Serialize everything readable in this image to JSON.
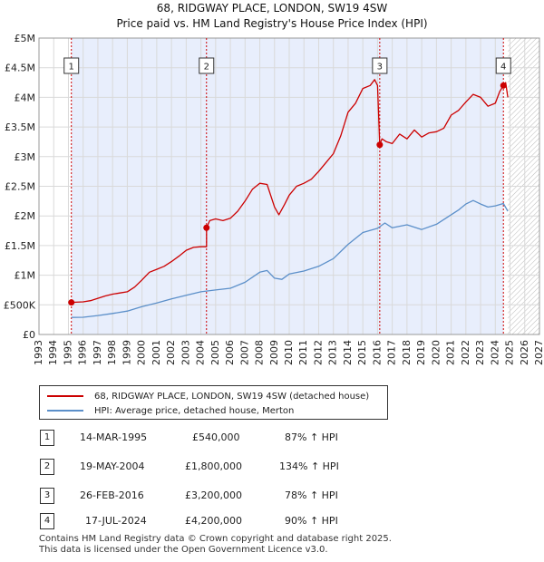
{
  "title": "68, RIDGWAY PLACE, LONDON, SW19 4SW",
  "subtitle": "Price paid vs. HM Land Registry's House Price Index (HPI)",
  "colors": {
    "property": "#cc0000",
    "hpi": "#5b8fc9",
    "band": "#e8eefc",
    "marker": "#cc0000"
  },
  "chart_data": {
    "type": "line",
    "xlim": [
      1993,
      2027
    ],
    "ylim": [
      0,
      5000000
    ],
    "yticks": [
      {
        "value": 0,
        "label": "£0"
      },
      {
        "value": 500000,
        "label": "£500K"
      },
      {
        "value": 1000000,
        "label": "£1M"
      },
      {
        "value": 1500000,
        "label": "£1.5M"
      },
      {
        "value": 2000000,
        "label": "£2M"
      },
      {
        "value": 2500000,
        "label": "£2.5M"
      },
      {
        "value": 3000000,
        "label": "£3M"
      },
      {
        "value": 3500000,
        "label": "£3.5M"
      },
      {
        "value": 4000000,
        "label": "£4M"
      },
      {
        "value": 4500000,
        "label": "£4.5M"
      },
      {
        "value": 5000000,
        "label": "£5M"
      }
    ],
    "xticks": [
      "1993",
      "1994",
      "1995",
      "1996",
      "1997",
      "1998",
      "1999",
      "2000",
      "2001",
      "2002",
      "2003",
      "2004",
      "2005",
      "2006",
      "2007",
      "2008",
      "2009",
      "2010",
      "2011",
      "2012",
      "2013",
      "2014",
      "2015",
      "2016",
      "2017",
      "2018",
      "2019",
      "2020",
      "2021",
      "2022",
      "2023",
      "2024",
      "2025",
      "2026",
      "2027"
    ],
    "shaded_range": [
      1995.2,
      2024.55
    ],
    "hatched_from": 2024.85,
    "series": [
      {
        "name": "68, RIDGWAY PLACE, LONDON, SW19 4SW (detached house)",
        "points": [
          [
            1995.2,
            540000
          ],
          [
            1995.5,
            545000
          ],
          [
            1996.0,
            550000
          ],
          [
            1996.5,
            570000
          ],
          [
            1997.0,
            610000
          ],
          [
            1997.5,
            650000
          ],
          [
            1998.0,
            680000
          ],
          [
            1998.5,
            700000
          ],
          [
            1999.0,
            720000
          ],
          [
            1999.5,
            800000
          ],
          [
            2000.0,
            920000
          ],
          [
            2000.5,
            1050000
          ],
          [
            2001.0,
            1100000
          ],
          [
            2001.5,
            1150000
          ],
          [
            2002.0,
            1230000
          ],
          [
            2002.5,
            1320000
          ],
          [
            2003.0,
            1420000
          ],
          [
            2003.5,
            1470000
          ],
          [
            2004.0,
            1480000
          ],
          [
            2004.38,
            1480000
          ],
          [
            2004.38,
            1800000
          ],
          [
            2004.6,
            1920000
          ],
          [
            2005.0,
            1950000
          ],
          [
            2005.5,
            1920000
          ],
          [
            2006.0,
            1960000
          ],
          [
            2006.5,
            2080000
          ],
          [
            2007.0,
            2250000
          ],
          [
            2007.5,
            2450000
          ],
          [
            2008.0,
            2550000
          ],
          [
            2008.5,
            2530000
          ],
          [
            2009.0,
            2150000
          ],
          [
            2009.3,
            2020000
          ],
          [
            2009.7,
            2200000
          ],
          [
            2010.0,
            2350000
          ],
          [
            2010.5,
            2500000
          ],
          [
            2011.0,
            2550000
          ],
          [
            2011.5,
            2620000
          ],
          [
            2012.0,
            2750000
          ],
          [
            2012.5,
            2900000
          ],
          [
            2013.0,
            3050000
          ],
          [
            2013.5,
            3350000
          ],
          [
            2014.0,
            3750000
          ],
          [
            2014.5,
            3900000
          ],
          [
            2015.0,
            4150000
          ],
          [
            2015.5,
            4200000
          ],
          [
            2015.8,
            4300000
          ],
          [
            2016.0,
            4200000
          ],
          [
            2016.15,
            3200000
          ],
          [
            2016.3,
            3300000
          ],
          [
            2016.6,
            3250000
          ],
          [
            2017.0,
            3220000
          ],
          [
            2017.5,
            3380000
          ],
          [
            2018.0,
            3300000
          ],
          [
            2018.5,
            3450000
          ],
          [
            2019.0,
            3330000
          ],
          [
            2019.5,
            3400000
          ],
          [
            2020.0,
            3420000
          ],
          [
            2020.5,
            3480000
          ],
          [
            2021.0,
            3700000
          ],
          [
            2021.5,
            3780000
          ],
          [
            2022.0,
            3920000
          ],
          [
            2022.5,
            4050000
          ],
          [
            2023.0,
            4000000
          ],
          [
            2023.5,
            3850000
          ],
          [
            2024.0,
            3900000
          ],
          [
            2024.3,
            4100000
          ],
          [
            2024.55,
            4200000
          ],
          [
            2024.7,
            4250000
          ],
          [
            2024.85,
            4000000
          ]
        ]
      },
      {
        "name": "HPI: Average price, detached house, Merton",
        "points": [
          [
            1995.2,
            288000
          ],
          [
            1996.0,
            290000
          ],
          [
            1997.0,
            320000
          ],
          [
            1998.0,
            355000
          ],
          [
            1999.0,
            395000
          ],
          [
            2000.0,
            470000
          ],
          [
            2001.0,
            530000
          ],
          [
            2002.0,
            600000
          ],
          [
            2003.0,
            660000
          ],
          [
            2004.0,
            720000
          ],
          [
            2005.0,
            750000
          ],
          [
            2006.0,
            780000
          ],
          [
            2007.0,
            880000
          ],
          [
            2008.0,
            1050000
          ],
          [
            2008.5,
            1080000
          ],
          [
            2009.0,
            950000
          ],
          [
            2009.5,
            930000
          ],
          [
            2010.0,
            1020000
          ],
          [
            2011.0,
            1070000
          ],
          [
            2012.0,
            1150000
          ],
          [
            2013.0,
            1280000
          ],
          [
            2014.0,
            1520000
          ],
          [
            2015.0,
            1720000
          ],
          [
            2016.0,
            1790000
          ],
          [
            2016.5,
            1880000
          ],
          [
            2017.0,
            1800000
          ],
          [
            2018.0,
            1850000
          ],
          [
            2019.0,
            1770000
          ],
          [
            2020.0,
            1860000
          ],
          [
            2021.0,
            2020000
          ],
          [
            2021.5,
            2100000
          ],
          [
            2022.0,
            2200000
          ],
          [
            2022.5,
            2260000
          ],
          [
            2023.0,
            2200000
          ],
          [
            2023.5,
            2150000
          ],
          [
            2024.0,
            2170000
          ],
          [
            2024.55,
            2210000
          ],
          [
            2024.85,
            2080000
          ]
        ]
      }
    ],
    "sales": [
      {
        "n": "1",
        "x": 1995.2,
        "price": 540000
      },
      {
        "n": "2",
        "x": 2004.38,
        "price": 1800000
      },
      {
        "n": "3",
        "x": 2016.15,
        "price": 3200000
      },
      {
        "n": "4",
        "x": 2024.55,
        "price": 4200000
      }
    ]
  },
  "legend": {
    "property_label": "68, RIDGWAY PLACE, LONDON, SW19 4SW (detached house)",
    "hpi_label": "HPI: Average price, detached house, Merton"
  },
  "table": [
    {
      "n": "1",
      "date": "14-MAR-1995",
      "price": "£540,000",
      "change": "87% ↑ HPI"
    },
    {
      "n": "2",
      "date": "19-MAY-2004",
      "price": "£1,800,000",
      "change": "134% ↑ HPI"
    },
    {
      "n": "3",
      "date": "26-FEB-2016",
      "price": "£3,200,000",
      "change": "78% ↑ HPI"
    },
    {
      "n": "4",
      "date": "17-JUL-2024",
      "price": "£4,200,000",
      "change": "90% ↑ HPI"
    }
  ],
  "footer": {
    "line1": "Contains HM Land Registry data © Crown copyright and database right 2025.",
    "line2": "This data is licensed under the Open Government Licence v3.0."
  }
}
